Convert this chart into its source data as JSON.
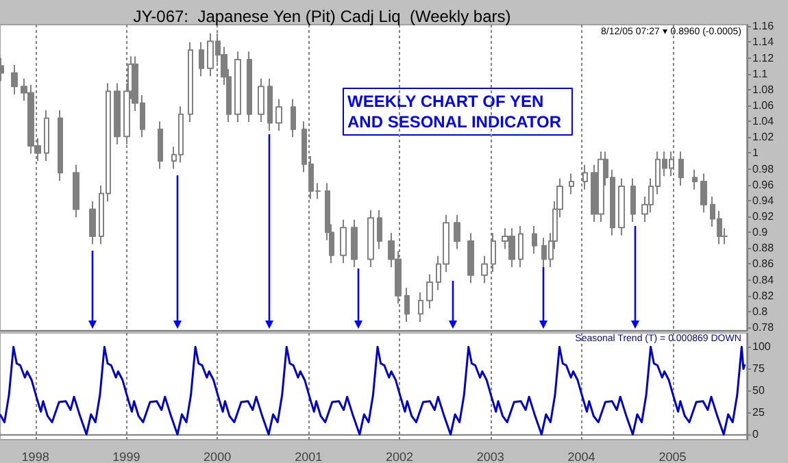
{
  "chart_data": [
    {
      "type": "candlestick",
      "title": "JY-067:  Japanese Yen (Pit) Cadj Liq  (Weekly bars)",
      "color": "#808080",
      "annotations": [
        "8/12/05 07:27 ▾ 0.8960 (-0.0005)",
        "WEEKLY CHART OF YEN AND SESONAL INDICATOR"
      ],
      "x": [
        "1997-08-16",
        "1997-10-10",
        "1997-11-15",
        "1997-12-13",
        "1998-01-09",
        "1998-02-15",
        "1998-04-10",
        "1998-06-14",
        "1998-08-17",
        "1998-09-22",
        "1998-10-20",
        "1998-11-25",
        "1999-01-02",
        "1999-01-19",
        "1999-02-06",
        "1999-03-06",
        "1999-05-18",
        "1999-07-12",
        "1999-08-08",
        "1999-09-14",
        "1999-10-30",
        "1999-12-05",
        "2000-01-02",
        "2000-01-29",
        "2000-02-17",
        "2000-03-24",
        "2000-05-10",
        "2000-06-25",
        "2000-07-31",
        "2000-09-05",
        "2000-10-31",
        "2000-12-16",
        "2001-01-12",
        "2001-02-08",
        "2001-03-17",
        "2001-04-05",
        "2001-05-20",
        "2001-07-04",
        "2001-09-07",
        "2001-10-14",
        "2001-11-28",
        "2001-12-26",
        "2002-02-01",
        "2002-03-27",
        "2002-05-02",
        "2002-06-08",
        "2002-07-06",
        "2002-08-20",
        "2002-10-14",
        "2002-12-08",
        "2003-01-14",
        "2003-02-28",
        "2003-03-28",
        "2003-05-03",
        "2003-06-27",
        "2003-08-03",
        "2003-08-31",
        "2003-09-18",
        "2003-10-06",
        "2003-11-21",
        "2004-01-15",
        "2004-02-20",
        "2004-03-19",
        "2004-04-07",
        "2004-05-04",
        "2004-06-09",
        "2004-07-26",
        "2004-09-10",
        "2004-10-07",
        "2004-11-03",
        "2004-12-01",
        "2004-12-28",
        "2005-02-03",
        "2005-03-30",
        "2005-05-05",
        "2005-06-11",
        "2005-07-08",
        "2005-07-26"
      ],
      "ohlc": [
        [
          1.11,
          1.12,
          1.091,
          1.101
        ],
        [
          1.101,
          1.111,
          1.074,
          1.084
        ],
        [
          1.084,
          1.094,
          1.066,
          1.076
        ],
        [
          1.076,
          1.086,
          0.999,
          1.009
        ],
        [
          1.009,
          1.019,
          0.99,
          1.0
        ],
        [
          1.0,
          1.054,
          0.99,
          1.044
        ],
        [
          1.044,
          1.054,
          0.965,
          0.975
        ],
        [
          0.975,
          0.985,
          0.919,
          0.929
        ],
        [
          0.929,
          0.939,
          0.885,
          0.895
        ],
        [
          0.895,
          0.959,
          0.885,
          0.949
        ],
        [
          0.949,
          1.088,
          0.939,
          1.078
        ],
        [
          1.078,
          1.088,
          1.011,
          1.021
        ],
        [
          1.021,
          1.088,
          1.011,
          1.078
        ],
        [
          1.078,
          1.122,
          1.068,
          1.112
        ],
        [
          1.112,
          1.122,
          1.053,
          1.063
        ],
        [
          1.063,
          1.073,
          1.02,
          1.03
        ],
        [
          1.03,
          1.04,
          0.98,
          0.99
        ],
        [
          0.99,
          1.008,
          0.98,
          0.998
        ],
        [
          0.998,
          1.059,
          0.988,
          1.049
        ],
        [
          1.049,
          1.14,
          1.039,
          1.13
        ],
        [
          1.13,
          1.14,
          1.097,
          1.107
        ],
        [
          1.107,
          1.151,
          1.097,
          1.141
        ],
        [
          1.141,
          1.151,
          1.114,
          1.124
        ],
        [
          1.124,
          1.134,
          1.086,
          1.096
        ],
        [
          1.096,
          1.106,
          1.039,
          1.049
        ],
        [
          1.049,
          1.128,
          1.039,
          1.118
        ],
        [
          1.118,
          1.128,
          1.039,
          1.049
        ],
        [
          1.049,
          1.094,
          1.039,
          1.084
        ],
        [
          1.084,
          1.094,
          1.028,
          1.038
        ],
        [
          1.038,
          1.068,
          1.028,
          1.058
        ],
        [
          1.058,
          1.068,
          1.02,
          1.03
        ],
        [
          1.03,
          1.04,
          0.976,
          0.986
        ],
        [
          0.986,
          0.996,
          0.942,
          0.952
        ],
        [
          0.952,
          0.962,
          0.942,
          0.952
        ],
        [
          0.952,
          0.962,
          0.89,
          0.9
        ],
        [
          0.9,
          0.91,
          0.861,
          0.871
        ],
        [
          0.871,
          0.916,
          0.861,
          0.906
        ],
        [
          0.906,
          0.916,
          0.856,
          0.866
        ],
        [
          0.866,
          0.928,
          0.856,
          0.918
        ],
        [
          0.918,
          0.928,
          0.879,
          0.889
        ],
        [
          0.889,
          0.899,
          0.856,
          0.866
        ],
        [
          0.866,
          0.876,
          0.81,
          0.82
        ],
        [
          0.82,
          0.83,
          0.787,
          0.797
        ],
        [
          0.797,
          0.824,
          0.787,
          0.814
        ],
        [
          0.814,
          0.847,
          0.804,
          0.837
        ],
        [
          0.837,
          0.87,
          0.827,
          0.86
        ],
        [
          0.86,
          0.922,
          0.85,
          0.912
        ],
        [
          0.912,
          0.922,
          0.879,
          0.889
        ],
        [
          0.889,
          0.899,
          0.836,
          0.846
        ],
        [
          0.846,
          0.87,
          0.836,
          0.86
        ],
        [
          0.86,
          0.899,
          0.85,
          0.889
        ],
        [
          0.889,
          0.905,
          0.879,
          0.895
        ],
        [
          0.895,
          0.905,
          0.856,
          0.866
        ],
        [
          0.866,
          0.908,
          0.856,
          0.898
        ],
        [
          0.898,
          0.908,
          0.873,
          0.883
        ],
        [
          0.883,
          0.893,
          0.856,
          0.866
        ],
        [
          0.866,
          0.899,
          0.856,
          0.889
        ],
        [
          0.889,
          0.939,
          0.879,
          0.929
        ],
        [
          0.929,
          0.968,
          0.919,
          0.958
        ],
        [
          0.958,
          0.974,
          0.948,
          0.964
        ],
        [
          0.964,
          0.985,
          0.954,
          0.975
        ],
        [
          0.975,
          0.985,
          0.913,
          0.923
        ],
        [
          0.923,
          1.002,
          0.913,
          0.992
        ],
        [
          0.992,
          1.002,
          0.959,
          0.969
        ],
        [
          0.969,
          0.979,
          0.896,
          0.906
        ],
        [
          0.906,
          0.968,
          0.896,
          0.958
        ],
        [
          0.958,
          0.968,
          0.913,
          0.923
        ],
        [
          0.923,
          0.945,
          0.913,
          0.935
        ],
        [
          0.935,
          0.968,
          0.925,
          0.958
        ],
        [
          0.958,
          1.002,
          0.948,
          0.992
        ],
        [
          0.992,
          1.002,
          0.971,
          0.981
        ],
        [
          0.981,
          1.002,
          0.971,
          0.992
        ],
        [
          0.992,
          1.002,
          0.959,
          0.969
        ],
        [
          0.969,
          0.979,
          0.954,
          0.964
        ],
        [
          0.964,
          0.974,
          0.925,
          0.935
        ],
        [
          0.935,
          0.945,
          0.907,
          0.917
        ],
        [
          0.917,
          0.927,
          0.885,
          0.895
        ],
        [
          0.895,
          0.905,
          0.885,
          0.895
        ]
      ],
      "xlim": [
        "1997-08-12",
        "2005-10-26"
      ],
      "xticks": [
        "1998",
        "1999",
        "2000",
        "2001",
        "2002",
        "2003",
        "2004",
        "2005"
      ],
      "ylim": [
        0.776,
        1.162
      ],
      "yticks": [
        0.78,
        0.8,
        0.82,
        0.84,
        0.86,
        0.88,
        0.9,
        0.92,
        0.94,
        0.96,
        0.98,
        1,
        1.02,
        1.04,
        1.06,
        1.08,
        1.1,
        1.12,
        1.14,
        1.16
      ],
      "grid": "x",
      "tick_labels": "y"
    },
    {
      "type": "line",
      "color": "#0000cc",
      "marker": "none",
      "annotations": [
        "Seasonal Trend (T) = 0.000869 DOWN"
      ],
      "x": [
        "1997-08-12",
        "1997-08-30",
        "1997-09-17",
        "1997-10-05",
        "1997-10-18",
        "1997-11-01",
        "1997-11-20",
        "1997-11-29",
        "1997-12-17",
        "1998-01-05",
        "1998-01-23",
        "1998-02-01",
        "1998-02-19",
        "1998-03-09",
        "1998-04-06",
        "1998-05-03",
        "1998-05-22",
        "1998-06-05",
        "1998-06-27",
        "1998-07-25",
        "1998-08-12",
        "1998-08-30",
        "1998-09-17",
        "1998-10-05",
        "1998-10-18",
        "1998-11-01",
        "1998-11-20",
        "1998-11-29",
        "1998-12-17",
        "1999-01-05",
        "1999-01-23",
        "1999-02-01",
        "1999-02-19",
        "1999-03-09",
        "1999-04-06",
        "1999-05-03",
        "1999-05-22",
        "1999-06-05",
        "1999-06-27",
        "1999-07-25",
        "1999-08-12",
        "1999-08-30",
        "1999-09-17",
        "1999-10-05",
        "1999-10-18",
        "1999-11-01",
        "1999-11-20",
        "1999-11-29",
        "1999-12-17",
        "2000-01-05",
        "2000-01-23",
        "2000-02-01",
        "2000-02-19",
        "2000-03-09",
        "2000-04-06",
        "2000-05-03",
        "2000-05-22",
        "2000-06-05",
        "2000-06-27",
        "2000-07-25",
        "2000-08-12",
        "2000-08-30",
        "2000-09-17",
        "2000-10-05",
        "2000-10-18",
        "2000-11-01",
        "2000-11-20",
        "2000-11-29",
        "2000-12-17",
        "2001-01-05",
        "2001-01-23",
        "2001-02-01",
        "2001-02-19",
        "2001-03-09",
        "2001-04-06",
        "2001-05-03",
        "2001-05-22",
        "2001-06-05",
        "2001-06-27",
        "2001-07-25",
        "2001-08-12",
        "2001-08-30",
        "2001-09-17",
        "2001-10-05",
        "2001-10-18",
        "2001-11-01",
        "2001-11-20",
        "2001-11-29",
        "2001-12-17",
        "2002-01-05",
        "2002-01-23",
        "2002-02-01",
        "2002-02-19",
        "2002-03-09",
        "2002-04-06",
        "2002-05-03",
        "2002-05-22",
        "2002-06-05",
        "2002-06-27",
        "2002-07-25",
        "2002-08-12",
        "2002-08-30",
        "2002-09-17",
        "2002-10-05",
        "2002-10-18",
        "2002-11-01",
        "2002-11-20",
        "2002-11-29",
        "2002-12-17",
        "2003-01-05",
        "2003-01-23",
        "2003-02-01",
        "2003-02-19",
        "2003-03-09",
        "2003-04-06",
        "2003-05-03",
        "2003-05-22",
        "2003-06-05",
        "2003-06-27",
        "2003-07-25",
        "2003-08-12",
        "2003-08-30",
        "2003-09-17",
        "2003-10-05",
        "2003-10-18",
        "2003-11-01",
        "2003-11-20",
        "2003-11-29",
        "2003-12-17",
        "2004-01-05",
        "2004-01-23",
        "2004-02-01",
        "2004-02-19",
        "2004-03-09",
        "2004-04-06",
        "2004-05-03",
        "2004-05-22",
        "2004-06-05",
        "2004-06-27",
        "2004-07-25",
        "2004-08-12",
        "2004-08-30",
        "2004-09-17",
        "2004-10-05",
        "2004-10-18",
        "2004-11-01",
        "2004-11-20",
        "2004-11-29",
        "2004-12-17",
        "2005-01-05",
        "2005-01-23",
        "2005-02-01",
        "2005-02-19",
        "2005-03-09",
        "2005-04-06",
        "2005-05-03",
        "2005-05-22",
        "2005-06-05",
        "2005-06-27",
        "2005-07-25",
        "2005-08-12",
        "2005-08-30",
        "2005-09-17",
        "2005-10-05",
        "2005-10-12",
        "2005-10-18"
      ],
      "values": [
        23,
        14,
        45,
        100,
        81,
        79,
        65,
        72,
        62,
        43,
        26,
        38,
        21,
        14,
        37,
        38,
        28,
        43,
        23,
        0,
        23,
        14,
        45,
        100,
        81,
        79,
        65,
        72,
        62,
        43,
        26,
        38,
        21,
        14,
        37,
        38,
        28,
        43,
        23,
        0,
        23,
        14,
        45,
        100,
        81,
        79,
        65,
        72,
        62,
        43,
        26,
        38,
        21,
        14,
        37,
        38,
        28,
        43,
        23,
        0,
        23,
        14,
        45,
        100,
        81,
        79,
        65,
        72,
        62,
        43,
        26,
        38,
        21,
        14,
        37,
        38,
        28,
        43,
        23,
        0,
        23,
        14,
        45,
        100,
        81,
        79,
        65,
        72,
        62,
        43,
        26,
        38,
        21,
        14,
        37,
        38,
        28,
        43,
        23,
        0,
        23,
        14,
        45,
        100,
        81,
        79,
        65,
        72,
        62,
        43,
        26,
        38,
        21,
        14,
        37,
        38,
        28,
        43,
        23,
        0,
        23,
        14,
        45,
        100,
        81,
        79,
        65,
        72,
        62,
        43,
        26,
        38,
        21,
        14,
        37,
        38,
        28,
        43,
        23,
        0,
        23,
        14,
        45,
        100,
        81,
        79,
        65,
        72,
        62,
        43,
        26,
        38,
        21,
        14,
        37,
        38,
        28,
        43,
        23,
        0,
        23,
        14,
        45,
        100,
        75,
        80
      ],
      "xlim": [
        "1997-08-12",
        "2005-10-26"
      ],
      "xticks": [
        "1998",
        "1999",
        "2000",
        "2001",
        "2002",
        "2003",
        "2004",
        "2005"
      ],
      "ylim": [
        -6,
        116
      ],
      "yticks": [
        0,
        25,
        50,
        75,
        100
      ],
      "grid": "x"
    }
  ]
}
